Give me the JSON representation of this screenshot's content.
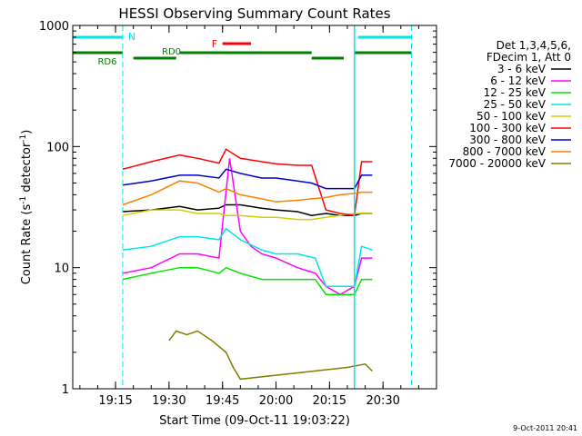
{
  "chart_data": {
    "type": "line",
    "title": "HESSI Observing Summary Count Rates",
    "xlabel": "Start Time (09-Oct-11 19:03:22)",
    "ylabel_main": "Count Rate (s",
    "ylabel_sup": "-1",
    "ylabel_mid": " detector",
    "ylabel_close": ")",
    "y_scale": "log",
    "ylim": [
      1,
      1000
    ],
    "xlim_minutes": [
      19.05,
      20.75
    ],
    "x_ticks": [
      "19:15",
      "19:30",
      "19:45",
      "20:00",
      "20:15",
      "20:30"
    ],
    "y_ticks": [
      "1",
      "10",
      "100",
      "1000"
    ],
    "grid": false,
    "legend_position": "right",
    "legend_header": [
      "Det 1,3,4,5,6,",
      "FDecim 1, Att 0"
    ],
    "timestamp": "9-Oct-2011 20:41",
    "annotations": {
      "night": {
        "label": "N",
        "color": "#00e5e5"
      },
      "flare": {
        "label": "F",
        "color": "#ff0000"
      },
      "rd0": {
        "label": "RD0",
        "color": "#007f00"
      },
      "rd6": {
        "label": "RD6",
        "color": "#007f00"
      }
    },
    "series": [
      {
        "name": "3 - 6 keV",
        "color": "#000000",
        "x": [
          "19:17",
          "19:25",
          "19:33",
          "19:38",
          "19:44",
          "19:46",
          "19:50",
          "19:56",
          "20:00",
          "20:06",
          "20:10",
          "20:14",
          "20:18",
          "20:22",
          "20:24",
          "20:27"
        ],
        "y": [
          29,
          30,
          32,
          30,
          31,
          33,
          33,
          31,
          30,
          29,
          27,
          28,
          27,
          27,
          28,
          28
        ]
      },
      {
        "name": "6 - 12 keV",
        "color": "#ff00ff",
        "x": [
          "19:17",
          "19:25",
          "19:33",
          "19:38",
          "19:44",
          "19:47",
          "19:50",
          "19:53",
          "19:56",
          "20:00",
          "20:06",
          "20:11",
          "20:14",
          "20:18",
          "20:22",
          "20:24",
          "20:27"
        ],
        "y": [
          9,
          10,
          13,
          13,
          12,
          80,
          20,
          15,
          13,
          12,
          10,
          9,
          7,
          6,
          7,
          12,
          12
        ]
      },
      {
        "name": "12 - 25 keV",
        "color": "#00e600",
        "x": [
          "19:17",
          "19:25",
          "19:33",
          "19:38",
          "19:44",
          "19:46",
          "19:50",
          "19:56",
          "20:00",
          "20:06",
          "20:11",
          "20:14",
          "20:18",
          "20:22",
          "20:24",
          "20:27"
        ],
        "y": [
          8,
          9,
          10,
          10,
          9,
          10,
          9,
          8,
          8,
          8,
          8,
          6,
          6,
          6,
          8,
          8
        ]
      },
      {
        "name": "25 - 50 keV",
        "color": "#00e5e5",
        "x": [
          "19:17",
          "19:25",
          "19:33",
          "19:38",
          "19:44",
          "19:46",
          "19:50",
          "19:56",
          "20:00",
          "20:06",
          "20:11",
          "20:14",
          "20:18",
          "20:22",
          "20:24",
          "20:27"
        ],
        "y": [
          14,
          15,
          18,
          18,
          17,
          21,
          17,
          14,
          13,
          13,
          12,
          7,
          7,
          7,
          15,
          14
        ]
      },
      {
        "name": "50 - 100 keV",
        "color": "#d0d000",
        "x": [
          "19:17",
          "19:25",
          "19:33",
          "19:38",
          "19:44",
          "19:46",
          "19:50",
          "19:56",
          "20:00",
          "20:06",
          "20:10",
          "20:14",
          "20:18",
          "20:22",
          "20:24",
          "20:27"
        ],
        "y": [
          27,
          30,
          30,
          28,
          28,
          27,
          27,
          26,
          26,
          25,
          25,
          26,
          27,
          28,
          28,
          28
        ]
      },
      {
        "name": "100 - 300 keV",
        "color": "#ff0000",
        "x": [
          "19:17",
          "19:25",
          "19:33",
          "19:38",
          "19:44",
          "19:46",
          "19:50",
          "19:56",
          "20:00",
          "20:06",
          "20:10",
          "20:14",
          "20:18",
          "20:22",
          "20:24",
          "20:27"
        ],
        "y": [
          65,
          75,
          85,
          80,
          73,
          95,
          80,
          75,
          72,
          70,
          70,
          30,
          28,
          27,
          75,
          75
        ]
      },
      {
        "name": "300 - 800 keV",
        "color": "#0000cc",
        "x": [
          "19:17",
          "19:25",
          "19:33",
          "19:38",
          "19:44",
          "19:46",
          "19:50",
          "19:56",
          "20:00",
          "20:06",
          "20:10",
          "20:14",
          "20:18",
          "20:22",
          "20:24",
          "20:27"
        ],
        "y": [
          48,
          52,
          58,
          58,
          55,
          65,
          60,
          55,
          55,
          52,
          50,
          45,
          45,
          45,
          58,
          58
        ]
      },
      {
        "name": "800 - 7000 keV",
        "color": "#ff8000",
        "x": [
          "19:17",
          "19:25",
          "19:33",
          "19:38",
          "19:44",
          "19:46",
          "19:50",
          "19:56",
          "20:00",
          "20:06",
          "20:10",
          "20:14",
          "20:18",
          "20:22",
          "20:24",
          "20:27"
        ],
        "y": [
          33,
          40,
          52,
          50,
          42,
          45,
          40,
          37,
          35,
          36,
          37,
          38,
          40,
          41,
          42,
          42
        ]
      },
      {
        "name": "7000 - 20000 keV",
        "color": "#808000",
        "x": [
          "19:30",
          "19:32",
          "19:35",
          "19:38",
          "19:42",
          "19:46",
          "19:48",
          "19:50",
          "20:20",
          "20:25",
          "20:27"
        ],
        "y": [
          2.5,
          3.0,
          2.8,
          3.0,
          2.5,
          2.0,
          1.5,
          1.2,
          1.5,
          1.6,
          1.4
        ]
      }
    ]
  }
}
